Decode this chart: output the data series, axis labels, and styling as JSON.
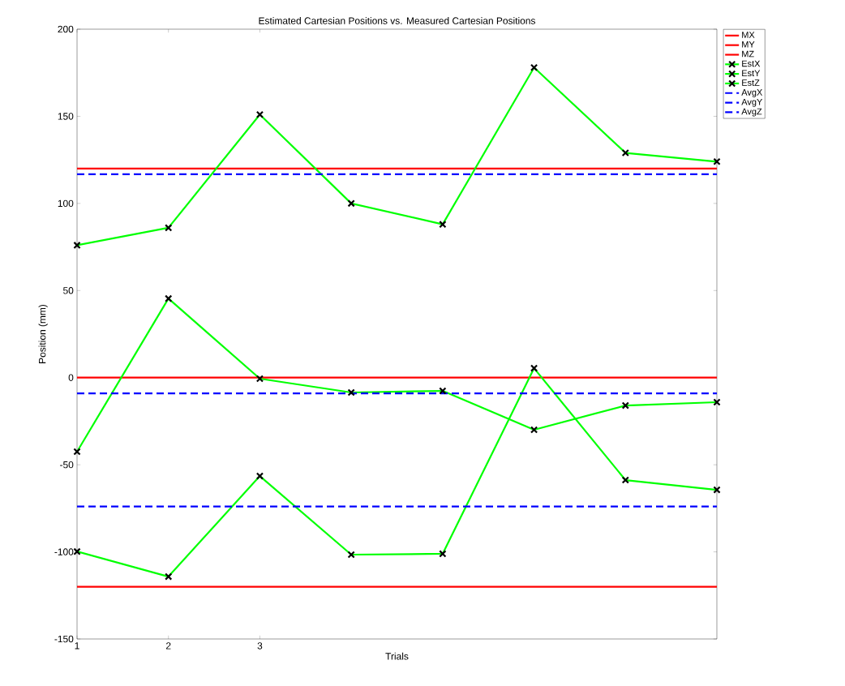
{
  "chart_data": {
    "type": "line",
    "title": "Estimated Cartesian Positions vs. Measured Cartesian Positions",
    "xlabel": "Trials",
    "ylabel": "Position (mm)",
    "x": [
      1,
      2,
      3,
      4,
      5,
      6,
      7,
      8
    ],
    "xlim": [
      1,
      8
    ],
    "xticks": [
      1,
      2,
      3
    ],
    "ylim": [
      -150,
      200
    ],
    "yticks": [
      -150,
      -100,
      -50,
      0,
      50,
      100,
      150,
      200
    ],
    "grid": false,
    "legend": "top right",
    "series": [
      {
        "name": "MX",
        "color": "#ff0000",
        "marker": "none",
        "line_style": "solid",
        "values": [
          120,
          120,
          120,
          120,
          120,
          120,
          120,
          120
        ]
      },
      {
        "name": "MY",
        "color": "#ff0000",
        "marker": "none",
        "line_style": "solid",
        "values": [
          0,
          0,
          0,
          0,
          0,
          0,
          0,
          0
        ]
      },
      {
        "name": "MZ",
        "color": "#ff0000",
        "marker": "none",
        "line_style": "solid",
        "values": [
          -120,
          -120,
          -120,
          -120,
          -120,
          -120,
          -120,
          -120
        ]
      },
      {
        "name": "EstX",
        "color": "#00ff00",
        "marker": "cross",
        "line_style": "solid",
        "values": [
          76,
          86,
          151,
          100,
          88,
          178,
          129,
          124
        ]
      },
      {
        "name": "EstY",
        "color": "#00ff00",
        "marker": "cross",
        "line_style": "solid",
        "values": [
          -42.5,
          45.4,
          -0.6,
          -8.5,
          -7.6,
          -29.9,
          -16,
          -14.1
        ]
      },
      {
        "name": "EstZ",
        "color": "#00ff00",
        "marker": "cross",
        "line_style": "solid",
        "values": [
          -99.8,
          -114.2,
          -56.5,
          -101.6,
          -101.1,
          5.4,
          -58.8,
          -64.4
        ]
      },
      {
        "name": "AvgX",
        "color": "#0000ff",
        "marker": "none",
        "line_style": "dashed",
        "values": [
          116.7,
          116.7,
          116.7,
          116.7,
          116.7,
          116.7,
          116.7,
          116.7
        ]
      },
      {
        "name": "AvgY",
        "color": "#0000ff",
        "marker": "none",
        "line_style": "dashed",
        "values": [
          -9,
          -9,
          -9,
          -9,
          -9,
          -9,
          -9,
          -9
        ]
      },
      {
        "name": "AvgZ",
        "color": "#0000ff",
        "marker": "none",
        "line_style": "dashed",
        "values": [
          -74,
          -74,
          -74,
          -74,
          -74,
          -74,
          -74,
          -74
        ]
      }
    ]
  }
}
